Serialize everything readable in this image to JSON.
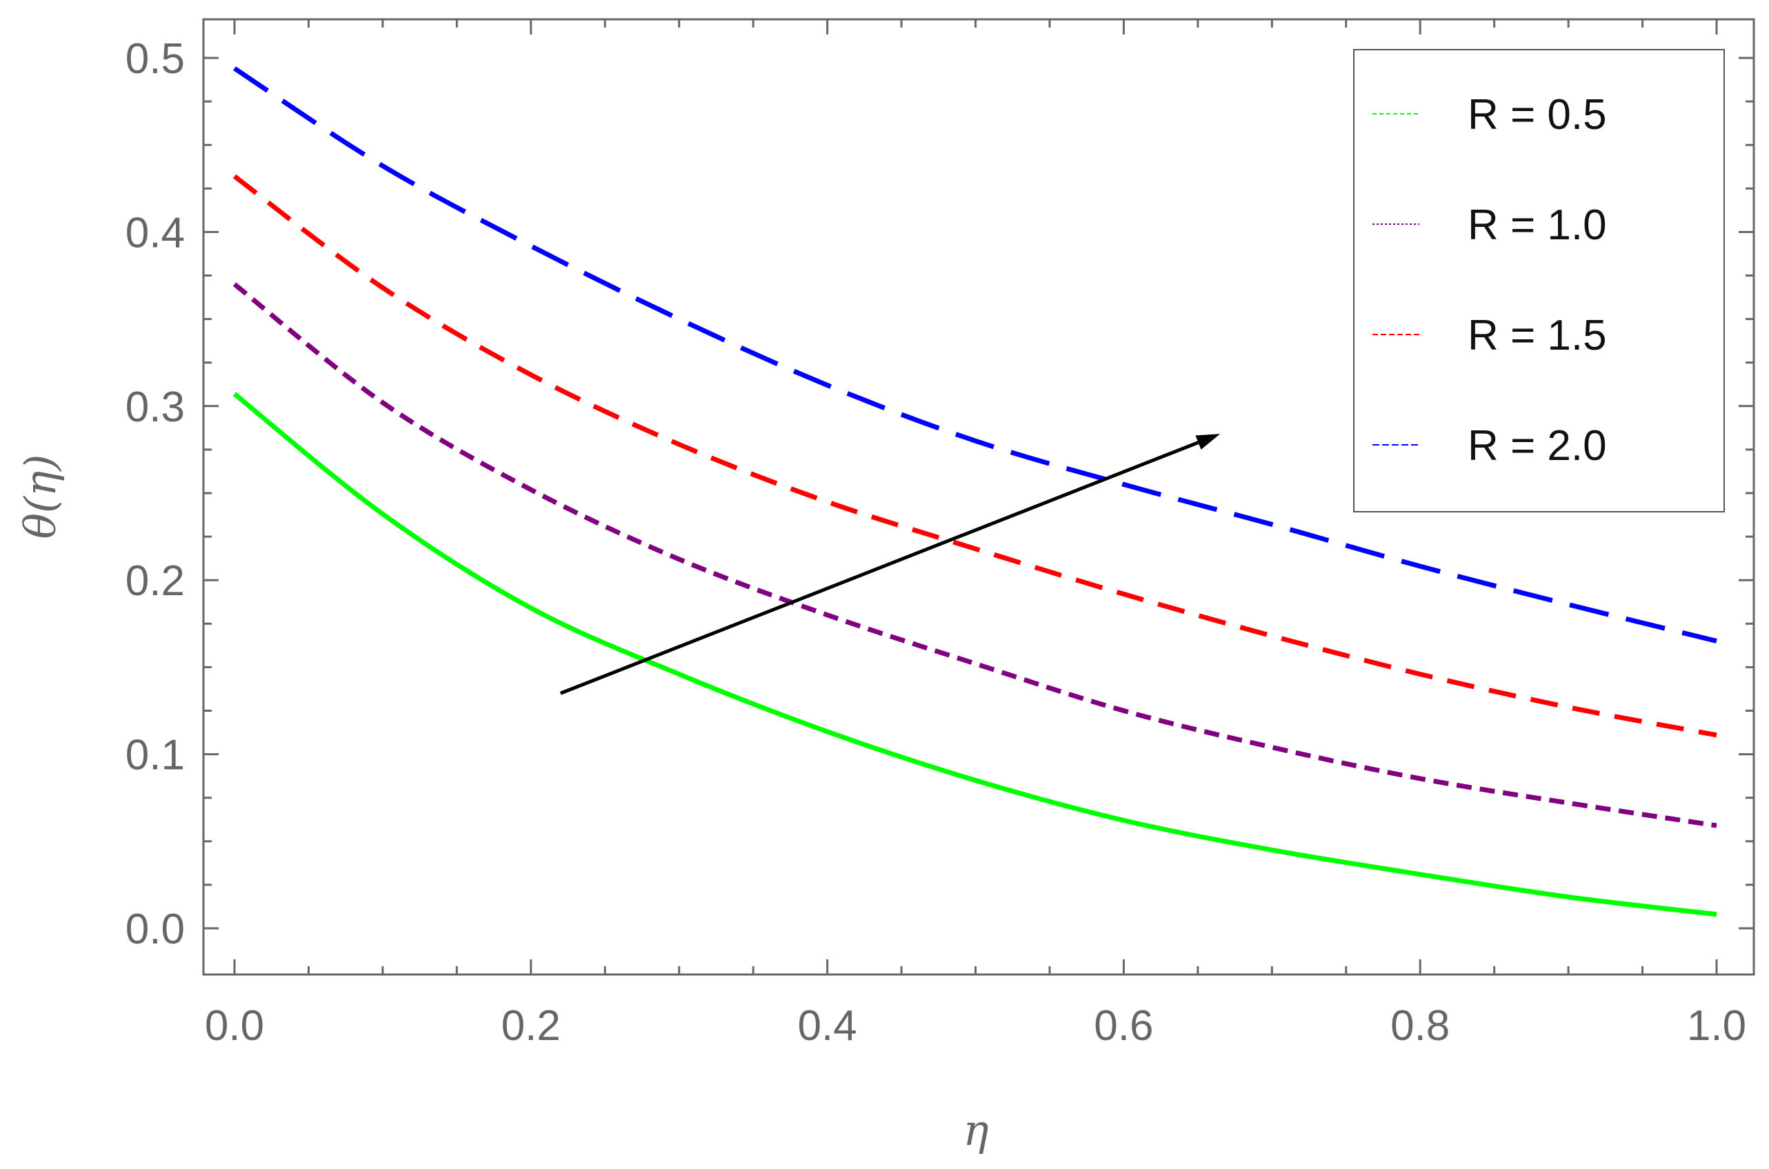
{
  "chart_data": {
    "type": "line",
    "xlabel": "η",
    "ylabel": "θ(η)",
    "xlim": [
      0.0,
      1.0
    ],
    "ylim": [
      0.0,
      0.5
    ],
    "x_ticks": [
      "0.0",
      "0.2",
      "0.4",
      "0.6",
      "0.8",
      "1.0"
    ],
    "y_ticks": [
      "0.0",
      "0.1",
      "0.2",
      "0.3",
      "0.4",
      "0.5"
    ],
    "grid": false,
    "legend_position": "top-right",
    "series": [
      {
        "name": "R = 0.5",
        "color": "#00ff00",
        "style": "solid",
        "x": [
          0.0,
          0.1,
          0.2,
          0.3,
          0.4,
          0.5,
          0.6,
          0.7,
          0.8,
          0.9,
          1.0
        ],
        "values": [
          0.307,
          0.238,
          0.184,
          0.146,
          0.113,
          0.085,
          0.062,
          0.045,
          0.031,
          0.018,
          0.008
        ]
      },
      {
        "name": "R = 1.0",
        "color": "#800080",
        "style": "short-dash",
        "x": [
          0.0,
          0.1,
          0.2,
          0.3,
          0.4,
          0.5,
          0.6,
          0.7,
          0.8,
          0.9,
          1.0
        ],
        "values": [
          0.37,
          0.302,
          0.252,
          0.212,
          0.18,
          0.152,
          0.125,
          0.104,
          0.086,
          0.072,
          0.059
        ]
      },
      {
        "name": "R = 1.5",
        "color": "#ff0000",
        "style": "dash",
        "x": [
          0.0,
          0.1,
          0.2,
          0.3,
          0.4,
          0.5,
          0.6,
          0.7,
          0.8,
          0.9,
          1.0
        ],
        "values": [
          0.432,
          0.368,
          0.318,
          0.278,
          0.245,
          0.218,
          0.192,
          0.168,
          0.146,
          0.127,
          0.111
        ]
      },
      {
        "name": "R = 2.0",
        "color": "#0000ff",
        "style": "long-dash",
        "x": [
          0.0,
          0.1,
          0.2,
          0.3,
          0.4,
          0.5,
          0.6,
          0.7,
          0.8,
          0.9,
          1.0
        ],
        "values": [
          0.494,
          0.438,
          0.392,
          0.35,
          0.312,
          0.28,
          0.255,
          0.232,
          0.208,
          0.186,
          0.165
        ]
      }
    ],
    "annotations": [
      {
        "type": "arrow",
        "color": "#000000",
        "from": [
          0.22,
          0.135
        ],
        "to": [
          0.665,
          0.284
        ]
      }
    ]
  }
}
